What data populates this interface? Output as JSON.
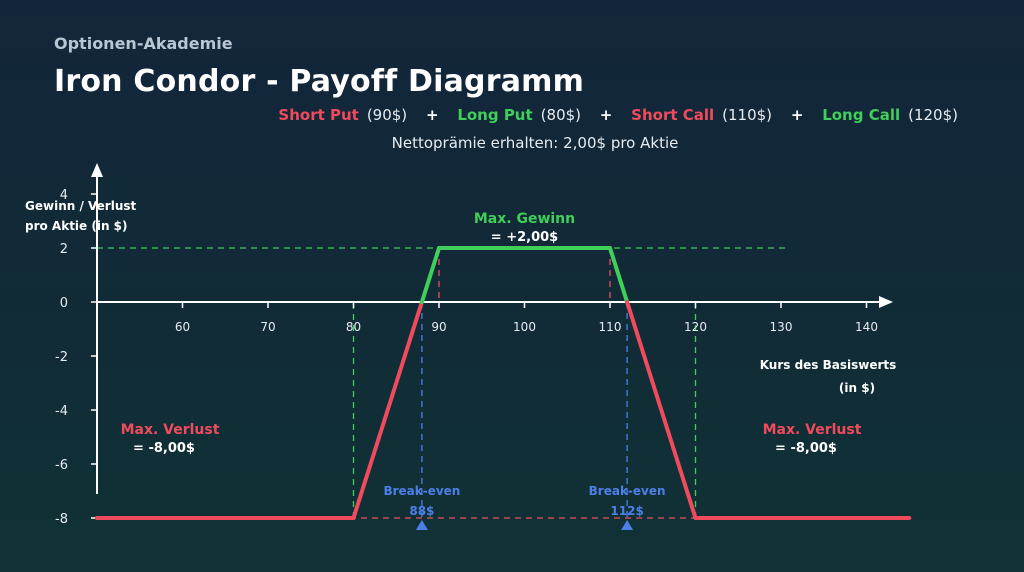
{
  "header": {
    "brand": "Optionen-Akademie",
    "title": "Iron Condor - Payoff Diagramm",
    "premium_note": "Nettoprämie erhalten: 2,00$ pro Aktie"
  },
  "legs": [
    {
      "name": "Short Put",
      "strike": "(90$)",
      "color": "#ef4b5c"
    },
    {
      "name": "Long Put",
      "strike": "(80$)",
      "color": "#3fcf5a"
    },
    {
      "name": "Short Call",
      "strike": "(110$)",
      "color": "#ef4b5c"
    },
    {
      "name": "Long Call",
      "strike": "(120$)",
      "color": "#3fcf5a"
    }
  ],
  "plus_sign": "+",
  "colors": {
    "loss": "#ef4b5c",
    "profit": "#3fcf5a",
    "breakeven": "#4d7fe8",
    "axis": "#ffffff"
  },
  "chart_data": {
    "type": "line",
    "xlabel": [
      "Kurs des Basiswerts",
      "(in $)"
    ],
    "ylabel": [
      "Gewinn / Verlust",
      "pro Aktie (in $)"
    ],
    "xlim": [
      50,
      145
    ],
    "ylim": [
      -10,
      4
    ],
    "x_ticks": [
      60,
      70,
      80,
      90,
      100,
      110,
      120,
      130,
      140
    ],
    "y_ticks": [
      4,
      2,
      0,
      -2,
      -4,
      -6,
      -8
    ],
    "series": [
      {
        "x": [
          50,
          80,
          88,
          90,
          110,
          112,
          120,
          145
        ],
        "y": [
          -8,
          -8,
          0,
          2,
          2,
          0,
          -8,
          -8
        ]
      }
    ],
    "annotations": {
      "max_gain": {
        "label": "Max. Gewinn",
        "value": "= +2,00$",
        "x": 100,
        "y": 2
      },
      "max_loss_left": {
        "label": "Max. Verlust",
        "value": "= -8,00$",
        "x": 60,
        "y": -8
      },
      "max_loss_right": {
        "label": "Max. Verlust",
        "value": "= -8,00$",
        "x": 130,
        "y": -8
      },
      "breakevens": [
        {
          "x": 88,
          "label": "Break-even",
          "value": "88$"
        },
        {
          "x": 112,
          "label": "Break-even",
          "value": "112$"
        }
      ]
    }
  }
}
